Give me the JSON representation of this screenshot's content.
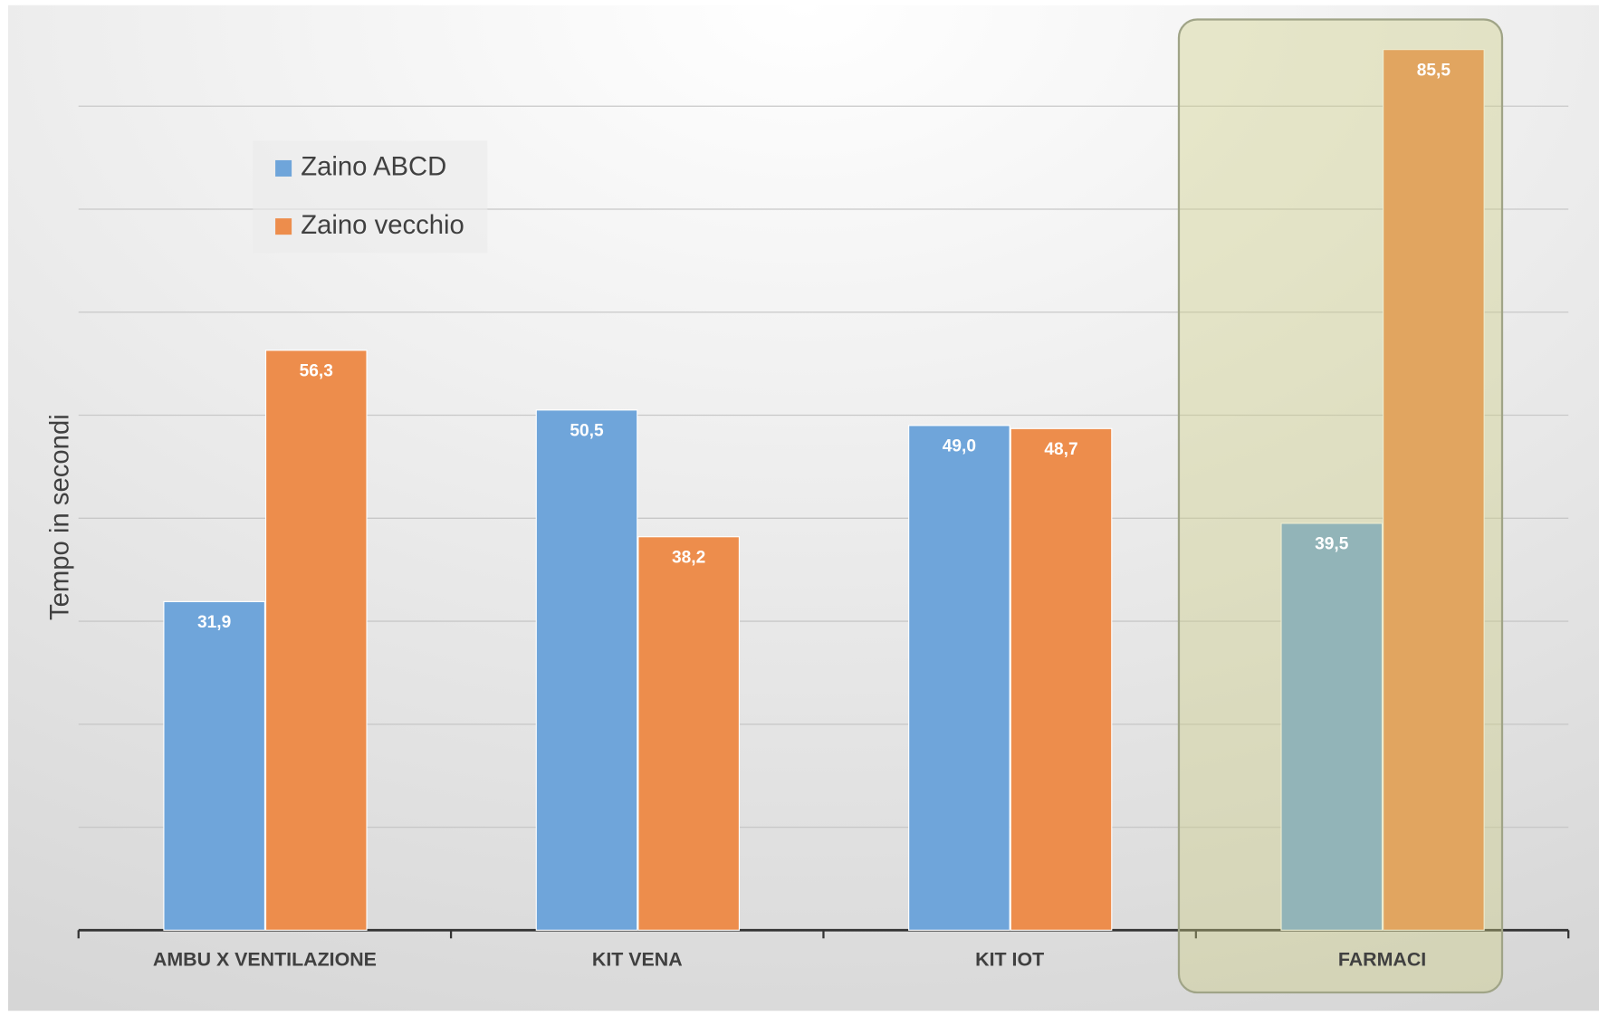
{
  "chart_data": {
    "type": "bar",
    "y_label": "Tempo in secondi",
    "categories": [
      "AMBU X VENTILAZIONE",
      "KIT VENA",
      "KIT IOT",
      "FARMACI"
    ],
    "series": [
      {
        "name": "Zaino ABCD",
        "color": "#6fa5da",
        "values": [
          31.9,
          50.5,
          49.0,
          39.5
        ],
        "value_labels": [
          "31,9",
          "50,5",
          "49,0",
          "39,5"
        ]
      },
      {
        "name": "Zaino vecchio",
        "color": "#ed8d4c",
        "values": [
          56.3,
          38.2,
          48.7,
          85.5
        ],
        "value_labels": [
          "56,3",
          "38,2",
          "48,7",
          "85,5"
        ]
      }
    ],
    "ylim": [
      0,
      90
    ],
    "yticks": [
      0,
      10,
      20,
      30,
      40,
      50,
      60,
      70,
      80
    ],
    "grid": true
  }
}
